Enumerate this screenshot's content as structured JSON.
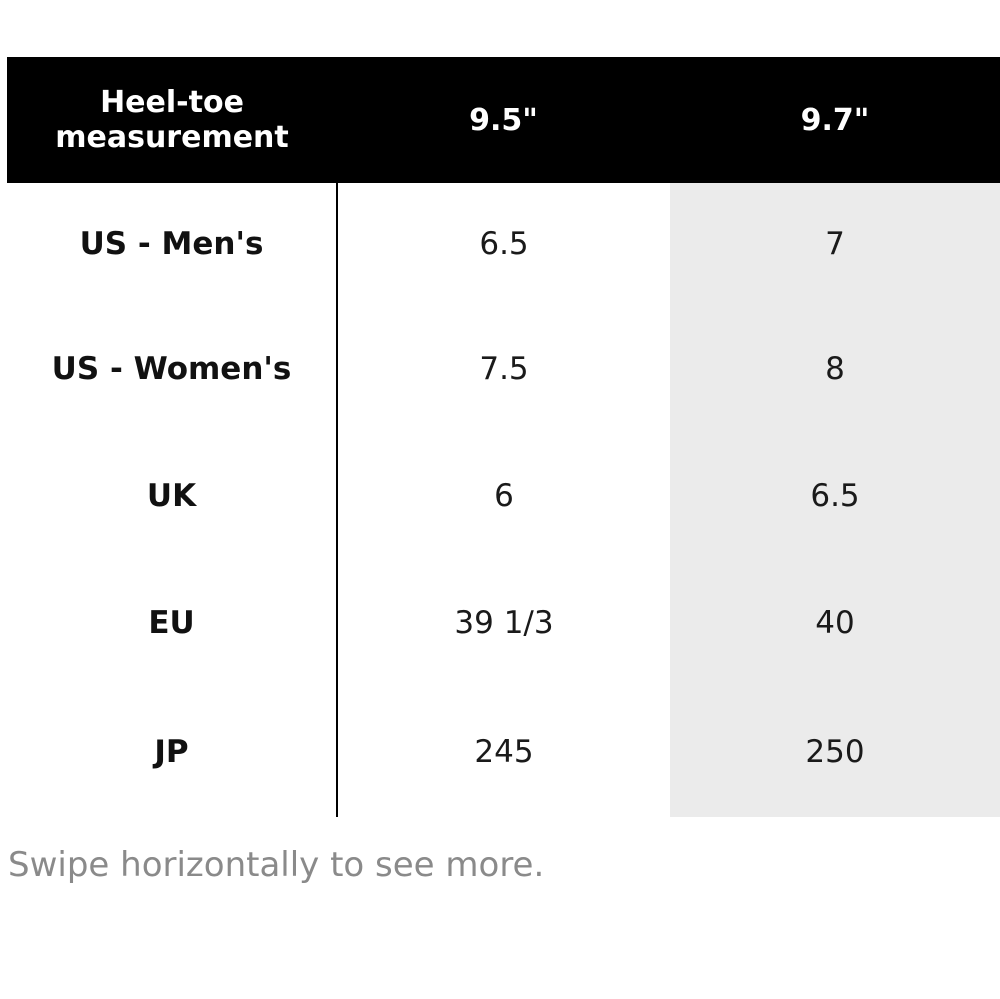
{
  "table": {
    "header": {
      "label_line1": "Heel-toe",
      "label_line2": "measurement",
      "columns": [
        "9.5\"",
        "9.7\""
      ]
    },
    "rows": [
      {
        "label": "US - Men's",
        "values": [
          "6.5",
          "7"
        ]
      },
      {
        "label": "US - Women's",
        "values": [
          "7.5",
          "8"
        ]
      },
      {
        "label": "UK",
        "values": [
          "6",
          "6.5"
        ]
      },
      {
        "label": "EU",
        "values": [
          "39 1/3",
          "40"
        ]
      },
      {
        "label": "JP",
        "values": [
          "245",
          "250"
        ]
      }
    ]
  },
  "hint_text": "Swipe horizontally to see more.",
  "colors": {
    "header_bg": "#000000",
    "header_text": "#ffffff",
    "highlight_column_bg": "#ebebeb",
    "hint_text": "#8a8a8a"
  }
}
